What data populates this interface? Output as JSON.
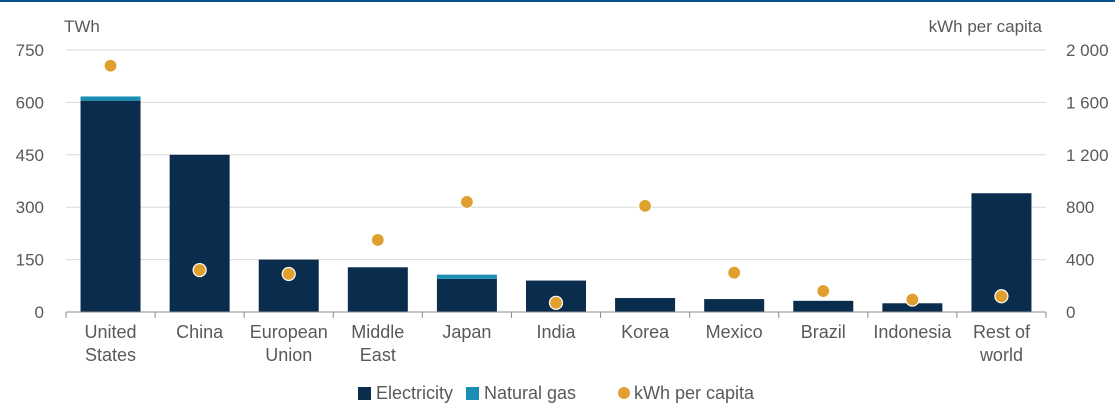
{
  "chart_data": {
    "type": "bar",
    "stacked": true,
    "categories": [
      [
        "United",
        "States"
      ],
      [
        "China"
      ],
      [
        "European",
        "Union"
      ],
      [
        "Middle",
        "East"
      ],
      [
        "Japan"
      ],
      [
        "India"
      ],
      [
        "Korea"
      ],
      [
        "Mexico"
      ],
      [
        "Brazil"
      ],
      [
        "Indonesia"
      ],
      [
        "Rest of",
        "world"
      ]
    ],
    "series": [
      {
        "name": "Electricity",
        "axis": "left",
        "color": "#0b2d4d",
        "values": [
          605,
          450,
          150,
          128,
          95,
          90,
          40,
          37,
          32,
          25,
          340
        ]
      },
      {
        "name": "Natural gas",
        "axis": "left",
        "color": "#1b8fb3",
        "values": [
          12,
          0,
          0,
          0,
          12,
          0,
          0,
          0,
          0,
          0,
          0
        ]
      },
      {
        "name": "kWh per capita",
        "axis": "right",
        "type": "scatter",
        "color": "#e0a030",
        "values": [
          1880,
          320,
          290,
          550,
          840,
          70,
          810,
          300,
          160,
          95,
          120
        ]
      }
    ],
    "y_left": {
      "label": "TWh",
      "ylim": [
        0,
        750
      ],
      "ticks": [
        "0",
        "150",
        "300",
        "450",
        "600",
        "750"
      ]
    },
    "y_right": {
      "label": "kWh per capita",
      "ylim": [
        0,
        2000
      ],
      "ticks": [
        "0",
        "400",
        "800",
        "1 200",
        "1 600",
        "2 000"
      ]
    },
    "legend_position": "bottom",
    "grid": "horizontal"
  },
  "colors": {
    "top_rule": "#0a4e8a",
    "grid": "#d9d9d9",
    "axis_text": "#595959"
  }
}
